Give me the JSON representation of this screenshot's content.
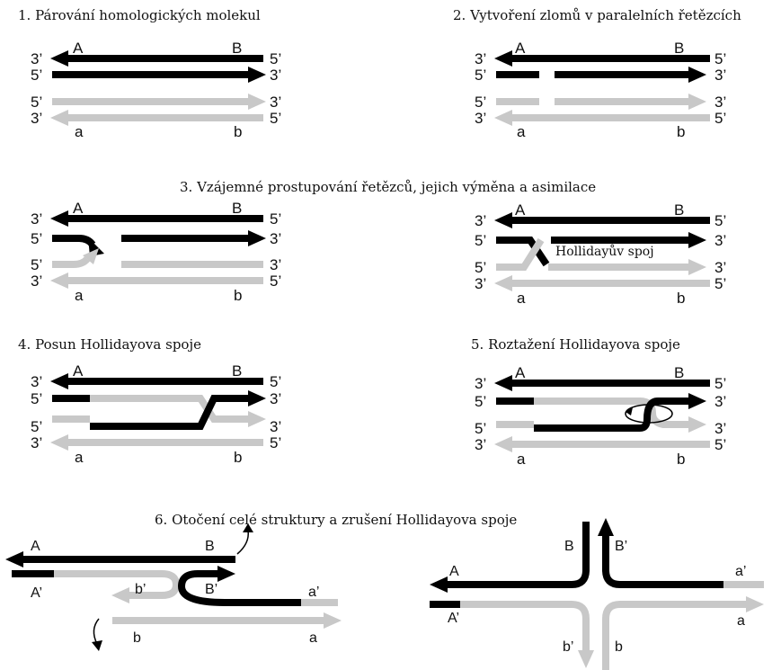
{
  "colors": {
    "dark": "#000000",
    "light": "#c8c8c8"
  },
  "panels": {
    "p1": {
      "title": "1. Párování homologických molekul"
    },
    "p2": {
      "title": "2. Vytvoření zlomů v paralelních řetězcích"
    },
    "p3": {
      "title": "3. Vzájemné prostupování řetězců, jejich výměna a asimilace",
      "junction_label": "Hollidayův spoj"
    },
    "p4": {
      "title": "4. Posun Hollidayova spoje"
    },
    "p5": {
      "title": "5. Roztažení Hollidayova spoje"
    },
    "p6": {
      "title": "6. Otočení celé struktury a zrušení Hollidayova spoje"
    }
  },
  "labels": {
    "end3": "3’",
    "end5": "5’",
    "A": "A",
    "B": "B",
    "a": "a",
    "b": "b",
    "A_prime": "A’",
    "B_prime": "B’",
    "a_prime": "a’",
    "b_prime": "b’"
  }
}
